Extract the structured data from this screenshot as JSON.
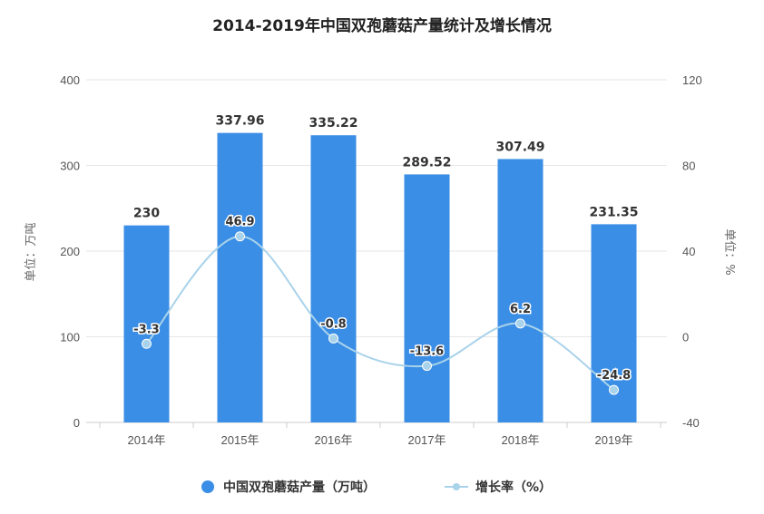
{
  "chart_data": {
    "type": "bar+line",
    "title": "2014-2019年中国双孢蘑菇产量统计及增长情况",
    "categories": [
      "2014年",
      "2015年",
      "2016年",
      "2017年",
      "2018年",
      "2019年"
    ],
    "series": [
      {
        "name": "中国双孢蘑菇产量（万吨）",
        "type": "bar",
        "axis": "left",
        "color": "#3a8ee6",
        "values": [
          230,
          337.96,
          335.22,
          289.52,
          307.49,
          231.35
        ],
        "labels": [
          "230",
          "337.96",
          "335.22",
          "289.52",
          "307.49",
          "231.35"
        ]
      },
      {
        "name": "增长率（%）",
        "type": "line",
        "axis": "right",
        "color": "#a9d3ea",
        "values": [
          -3.3,
          46.9,
          -0.8,
          -13.6,
          6.2,
          -24.8
        ],
        "labels": [
          "-3.3",
          "46.9",
          "-0.8",
          "-13.6",
          "6.2",
          "-24.8"
        ]
      }
    ],
    "y_left": {
      "label": "单位：万吨",
      "range": [
        0,
        400
      ],
      "ticks": [
        "0",
        "100",
        "200",
        "300",
        "400"
      ]
    },
    "y_right": {
      "label": "单位：%",
      "range": [
        -40,
        120
      ],
      "ticks": [
        "-40",
        "0",
        "40",
        "80",
        "120"
      ]
    },
    "grid": true,
    "legend_position": "bottom"
  }
}
